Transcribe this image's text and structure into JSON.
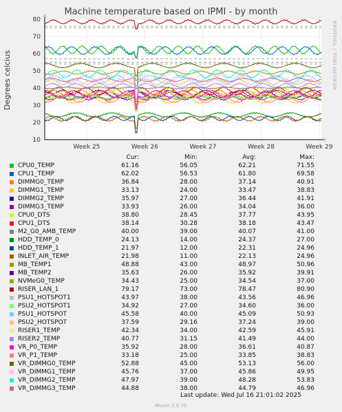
{
  "chart_data": {
    "type": "line",
    "title": "Machine temperature based on IPMI - by month",
    "ylabel": "Degrees celcius",
    "side_credit": "RRDTOOL / TOBI OETIKER",
    "ylim": [
      10,
      80
    ],
    "y_ticks": [
      "10",
      "20",
      "30",
      "40",
      "50",
      "60",
      "70",
      "80"
    ],
    "x_ticks": [
      "Week 25",
      "Week 26",
      "Week 27",
      "Week 28",
      "Week 29"
    ],
    "grid": true,
    "legend_headers": [
      "Cur:",
      "Min:",
      "Avg:",
      "Max:"
    ],
    "series": [
      {
        "name": "CPU0_TEMP",
        "color": "#00cc00",
        "cur": "61.16",
        "min": "56.05",
        "avg": "62.21",
        "max": "71.55"
      },
      {
        "name": "CPU1_TEMP",
        "color": "#0066b3",
        "cur": "62.02",
        "min": "56.53",
        "avg": "61.80",
        "max": "69.58"
      },
      {
        "name": "DIMMG0_TEMP",
        "color": "#ff8000",
        "cur": "36.84",
        "min": "28.00",
        "avg": "37.14",
        "max": "40.91"
      },
      {
        "name": "DIMMG1_TEMP",
        "color": "#ffcc00",
        "cur": "33.13",
        "min": "24.00",
        "avg": "33.47",
        "max": "38.83"
      },
      {
        "name": "DIMMG2_TEMP",
        "color": "#330099",
        "cur": "35.97",
        "min": "27.00",
        "avg": "36.44",
        "max": "41.91"
      },
      {
        "name": "DIMMG3_TEMP",
        "color": "#990099",
        "cur": "33.93",
        "min": "26.00",
        "avg": "34.04",
        "max": "36.00"
      },
      {
        "name": "CPU0_DTS",
        "color": "#ccff00",
        "cur": "38.80",
        "min": "28.45",
        "avg": "37.77",
        "max": "43.95"
      },
      {
        "name": "CPU1_DTS",
        "color": "#ff0000",
        "cur": "38.14",
        "min": "30.28",
        "avg": "38.18",
        "max": "43.47"
      },
      {
        "name": "M2_G0_AMB_TEMP",
        "color": "#808080",
        "cur": "40.00",
        "min": "39.00",
        "avg": "40.07",
        "max": "41.00"
      },
      {
        "name": "HDD_TEMP_0",
        "color": "#008f00",
        "cur": "24.13",
        "min": "14.00",
        "avg": "24.37",
        "max": "27.00"
      },
      {
        "name": "HDD_TEMP_1",
        "color": "#00487d",
        "cur": "21.97",
        "min": "12.00",
        "avg": "22.31",
        "max": "24.96"
      },
      {
        "name": "INLET_AIR_TEMP",
        "color": "#b35a00",
        "cur": "21.98",
        "min": "11.00",
        "avg": "22.13",
        "max": "24.96"
      },
      {
        "name": "MB_TEMP1",
        "color": "#b38f00",
        "cur": "48.88",
        "min": "43.00",
        "avg": "48.97",
        "max": "50.96"
      },
      {
        "name": "MB_TEMP2",
        "color": "#6b006b",
        "cur": "35.63",
        "min": "26.00",
        "avg": "35.92",
        "max": "39.91"
      },
      {
        "name": "NVMeG0_TEMP",
        "color": "#8fb300",
        "cur": "34.43",
        "min": "25.00",
        "avg": "34.54",
        "max": "37.00"
      },
      {
        "name": "RISER_LAN_1",
        "color": "#b30000",
        "cur": "79.17",
        "min": "73.00",
        "avg": "78.47",
        "max": "80.90"
      },
      {
        "name": "PSU1_HOTSPOT1",
        "color": "#bebebe",
        "cur": "43.97",
        "min": "38.00",
        "avg": "43.56",
        "max": "46.96"
      },
      {
        "name": "PSU2_HOTSPOT1",
        "color": "#80ff80",
        "cur": "34.92",
        "min": "27.00",
        "avg": "34.60",
        "max": "36.00"
      },
      {
        "name": "PSU1_HOTSPOT",
        "color": "#80c9ff",
        "cur": "45.58",
        "min": "40.00",
        "avg": "45.09",
        "max": "50.93"
      },
      {
        "name": "PSU2_HOTSPOT",
        "color": "#ffc080",
        "cur": "37.59",
        "min": "29.16",
        "avg": "37.24",
        "max": "39.00"
      },
      {
        "name": "RISER1_TEMP",
        "color": "#ffe680",
        "cur": "42.34",
        "min": "34.00",
        "avg": "42.59",
        "max": "45.91"
      },
      {
        "name": "RISER2_TEMP",
        "color": "#aa80ff",
        "cur": "40.77",
        "min": "31.15",
        "avg": "41.49",
        "max": "44.00"
      },
      {
        "name": "VR_P0_TEMP",
        "color": "#ee00cc",
        "cur": "35.92",
        "min": "28.00",
        "avg": "36.61",
        "max": "40.87"
      },
      {
        "name": "VR_P1_TEMP",
        "color": "#ff8080",
        "cur": "33.18",
        "min": "25.00",
        "avg": "33.85",
        "max": "38.83"
      },
      {
        "name": "VR_DIMMG0_TEMP",
        "color": "#666600",
        "cur": "52.88",
        "min": "45.00",
        "avg": "53.13",
        "max": "56.00"
      },
      {
        "name": "VR_DIMMG1_TEMP",
        "color": "#ffbfff",
        "cur": "45.76",
        "min": "37.00",
        "avg": "45.86",
        "max": "49.95"
      },
      {
        "name": "VR_DIMMG2_TEMP",
        "color": "#00ffcc",
        "cur": "47.97",
        "min": "39.00",
        "avg": "48.28",
        "max": "53.83"
      },
      {
        "name": "VR_DIMMG3_TEMP",
        "color": "#cc6699",
        "cur": "44.88",
        "min": "38.00",
        "avg": "44.79",
        "max": "46.96"
      }
    ],
    "warning_levels": [
      76,
      75,
      57,
      55,
      54
    ]
  },
  "footer": {
    "last_update": "Last update: Wed Jul 16 21:01:02 2025",
    "version": "Munin 2.0.75"
  }
}
